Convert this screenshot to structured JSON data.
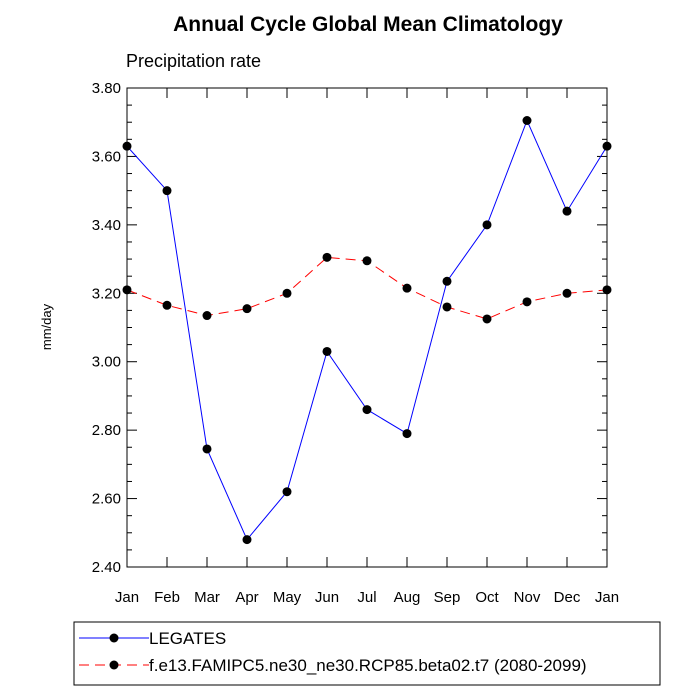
{
  "chart_data": {
    "type": "line",
    "title": "Annual Cycle Global Mean Climatology",
    "subtitle": "Precipitation rate",
    "xlabel": "",
    "ylabel": "mm/day",
    "categories": [
      "Jan",
      "Feb",
      "Mar",
      "Apr",
      "May",
      "Jun",
      "Jul",
      "Aug",
      "Sep",
      "Oct",
      "Nov",
      "Dec",
      "Jan"
    ],
    "ylim": [
      2.4,
      3.8
    ],
    "yticks": [
      "2.40",
      "2.60",
      "2.80",
      "3.00",
      "3.20",
      "3.40",
      "3.60",
      "3.80"
    ],
    "grid": false,
    "legend_position": "bottom",
    "series": [
      {
        "name": "LEGATES",
        "color": "#0000ff",
        "style": "solid",
        "marker": "circle",
        "values": [
          3.63,
          3.5,
          2.745,
          2.48,
          2.62,
          3.03,
          2.86,
          2.79,
          3.235,
          3.4,
          3.705,
          3.44,
          3.63
        ]
      },
      {
        "name": "f.e13.FAMIPC5.ne30_ne30.RCP85.beta02.t7 (2080-2099)",
        "color": "#ff0000",
        "style": "dashed",
        "marker": "circle",
        "values": [
          3.21,
          3.165,
          3.135,
          3.155,
          3.2,
          3.305,
          3.295,
          3.215,
          3.16,
          3.125,
          3.175,
          3.2,
          3.21
        ]
      }
    ]
  }
}
